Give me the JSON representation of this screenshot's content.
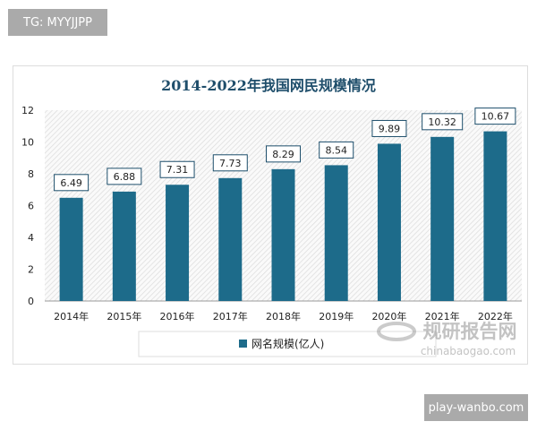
{
  "watermarks": {
    "top_left": "TG: MYYJJPP",
    "bottom_right": "play-wanbo.com",
    "logo_text": "规研报告网",
    "logo_url_text": "chinabaogao.com"
  },
  "colors": {
    "bar": "#1d6b8a",
    "title": "#1f4e6b"
  },
  "chart_data": {
    "type": "bar",
    "title": "2014-2022年我国网民规模情况",
    "categories": [
      "2014年",
      "2015年",
      "2016年",
      "2017年",
      "2018年",
      "2019年",
      "2020年",
      "2021年",
      "2022年"
    ],
    "series": [
      {
        "name": "网名规模(亿人)",
        "values": [
          6.49,
          6.88,
          7.31,
          7.73,
          8.29,
          8.54,
          9.89,
          10.32,
          10.67
        ]
      }
    ],
    "data_labels": [
      "6.49",
      "6.88",
      "7.31",
      "7.73",
      "8.29",
      "8.54",
      "9.89",
      "10.32",
      "10.67"
    ],
    "yticks": [
      "0",
      "2",
      "4",
      "6",
      "8",
      "10",
      "12"
    ],
    "ylim": [
      0,
      12
    ],
    "grid": false,
    "legend": "bottom"
  }
}
